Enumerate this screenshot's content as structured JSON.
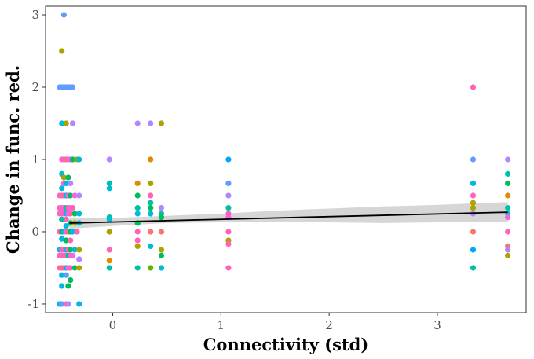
{
  "chart_data": {
    "type": "scatter",
    "title": "",
    "xlabel": "Connectivity (std)",
    "ylabel": "Change in func. red.",
    "xlim": [
      -0.62,
      3.82
    ],
    "ylim": [
      -1.12,
      3.12
    ],
    "x_ticks": [
      0,
      1,
      2,
      3
    ],
    "x_tick_labels": [
      "0",
      "1",
      "2",
      "3"
    ],
    "y_ticks": [
      -1,
      0,
      1,
      2,
      3
    ],
    "y_tick_labels": [
      "-1",
      "0",
      "1",
      "2",
      "3"
    ],
    "grid": false,
    "legend": "none",
    "palette": [
      "#F8766D",
      "#DB8E00",
      "#AEA200",
      "#64B200",
      "#00BD5C",
      "#00C1A7",
      "#00BADE",
      "#00A6FF",
      "#B385FF",
      "#EF67EB",
      "#FF63B6",
      "#F564E3",
      "#619CFF",
      "#00B0F6"
    ],
    "points": [
      [
        -0.45,
        3.0,
        12
      ],
      [
        -0.47,
        2.5,
        2
      ],
      [
        -0.47,
        2.0,
        12
      ],
      [
        -0.45,
        2.0,
        12
      ],
      [
        -0.43,
        2.0,
        12
      ],
      [
        -0.41,
        2.0,
        12
      ],
      [
        -0.39,
        2.0,
        12
      ],
      [
        -0.37,
        2.0,
        12
      ],
      [
        -0.49,
        2.0,
        12
      ],
      [
        -0.47,
        1.5,
        6
      ],
      [
        -0.43,
        1.5,
        2
      ],
      [
        -0.37,
        1.5,
        8
      ],
      [
        -0.47,
        1.0,
        11
      ],
      [
        -0.45,
        1.0,
        10
      ],
      [
        -0.43,
        1.0,
        0
      ],
      [
        -0.41,
        1.0,
        11
      ],
      [
        -0.39,
        1.0,
        11
      ],
      [
        -0.37,
        1.0,
        4
      ],
      [
        -0.33,
        1.0,
        2
      ],
      [
        -0.31,
        1.0,
        6
      ],
      [
        -0.47,
        0.8,
        6
      ],
      [
        -0.45,
        0.75,
        2
      ],
      [
        -0.41,
        0.75,
        4
      ],
      [
        -0.45,
        0.67,
        11
      ],
      [
        -0.43,
        0.67,
        6
      ],
      [
        -0.39,
        0.67,
        8
      ],
      [
        -0.47,
        0.6,
        6
      ],
      [
        -0.49,
        0.5,
        11
      ],
      [
        -0.47,
        0.5,
        0
      ],
      [
        -0.45,
        0.5,
        10
      ],
      [
        -0.43,
        0.5,
        6
      ],
      [
        -0.41,
        0.5,
        11
      ],
      [
        -0.39,
        0.5,
        4
      ],
      [
        -0.35,
        0.5,
        11
      ],
      [
        -0.31,
        0.5,
        8
      ],
      [
        -0.49,
        0.33,
        10
      ],
      [
        -0.47,
        0.33,
        11
      ],
      [
        -0.45,
        0.33,
        10
      ],
      [
        -0.43,
        0.33,
        5
      ],
      [
        -0.41,
        0.33,
        10
      ],
      [
        -0.39,
        0.33,
        11
      ],
      [
        -0.37,
        0.33,
        10
      ],
      [
        -0.49,
        0.25,
        10
      ],
      [
        -0.47,
        0.25,
        11
      ],
      [
        -0.45,
        0.25,
        10
      ],
      [
        -0.43,
        0.25,
        6
      ],
      [
        -0.41,
        0.25,
        11
      ],
      [
        -0.39,
        0.25,
        10
      ],
      [
        -0.35,
        0.25,
        4
      ],
      [
        -0.31,
        0.25,
        6
      ],
      [
        -0.47,
        0.17,
        5
      ],
      [
        -0.43,
        0.17,
        10
      ],
      [
        -0.39,
        0.12,
        4
      ],
      [
        -0.35,
        0.12,
        2
      ],
      [
        -0.31,
        0.12,
        6
      ],
      [
        -0.43,
        0.08,
        6
      ],
      [
        -0.49,
        0.0,
        10
      ],
      [
        -0.47,
        0.0,
        4
      ],
      [
        -0.45,
        0.0,
        6
      ],
      [
        -0.43,
        0.0,
        11
      ],
      [
        -0.41,
        0.0,
        0
      ],
      [
        -0.39,
        0.0,
        4
      ],
      [
        -0.37,
        0.0,
        6
      ],
      [
        -0.33,
        0.0,
        10
      ],
      [
        -0.47,
        -0.1,
        6
      ],
      [
        -0.43,
        -0.12,
        4
      ],
      [
        -0.39,
        -0.12,
        10
      ],
      [
        -0.49,
        -0.25,
        6
      ],
      [
        -0.47,
        -0.25,
        10
      ],
      [
        -0.45,
        -0.25,
        10
      ],
      [
        -0.43,
        -0.25,
        6
      ],
      [
        -0.41,
        -0.25,
        10
      ],
      [
        -0.39,
        -0.25,
        4
      ],
      [
        -0.35,
        -0.25,
        6
      ],
      [
        -0.31,
        -0.25,
        2
      ],
      [
        -0.49,
        -0.33,
        10
      ],
      [
        -0.47,
        -0.33,
        11
      ],
      [
        -0.45,
        -0.33,
        10
      ],
      [
        -0.43,
        -0.33,
        10
      ],
      [
        -0.41,
        -0.33,
        5
      ],
      [
        -0.39,
        -0.33,
        10
      ],
      [
        -0.37,
        -0.33,
        11
      ],
      [
        -0.31,
        -0.38,
        8
      ],
      [
        -0.49,
        -0.5,
        10
      ],
      [
        -0.47,
        -0.5,
        0
      ],
      [
        -0.45,
        -0.5,
        10
      ],
      [
        -0.43,
        -0.5,
        6
      ],
      [
        -0.41,
        -0.5,
        11
      ],
      [
        -0.39,
        -0.5,
        10
      ],
      [
        -0.35,
        -0.5,
        4
      ],
      [
        -0.31,
        -0.5,
        2
      ],
      [
        -0.47,
        -0.6,
        6
      ],
      [
        -0.43,
        -0.6,
        12
      ],
      [
        -0.39,
        -0.67,
        4
      ],
      [
        -0.41,
        -0.75,
        4
      ],
      [
        -0.47,
        -0.75,
        6
      ],
      [
        -0.49,
        -1.0,
        6
      ],
      [
        -0.47,
        -1.0,
        12
      ],
      [
        -0.43,
        -1.0,
        10
      ],
      [
        -0.41,
        -1.0,
        8
      ],
      [
        -0.31,
        -1.0,
        6
      ],
      [
        -0.03,
        1.0,
        8
      ],
      [
        -0.03,
        0.67,
        5
      ],
      [
        -0.03,
        0.6,
        6
      ],
      [
        -0.03,
        0.2,
        5
      ],
      [
        -0.03,
        0.17,
        6
      ],
      [
        -0.03,
        0.0,
        10
      ],
      [
        -0.03,
        0.0,
        2
      ],
      [
        -0.03,
        -0.25,
        10
      ],
      [
        -0.03,
        -0.4,
        1
      ],
      [
        -0.03,
        -0.5,
        5
      ],
      [
        0.23,
        1.5,
        8
      ],
      [
        0.23,
        0.67,
        1
      ],
      [
        0.23,
        0.5,
        4
      ],
      [
        0.23,
        0.33,
        5
      ],
      [
        0.23,
        0.25,
        6
      ],
      [
        0.23,
        0.12,
        4
      ],
      [
        0.23,
        0.0,
        10
      ],
      [
        0.23,
        -0.12,
        10
      ],
      [
        0.23,
        -0.2,
        2
      ],
      [
        0.23,
        -0.5,
        5
      ],
      [
        0.35,
        1.5,
        8
      ],
      [
        0.35,
        1.0,
        1
      ],
      [
        0.35,
        0.67,
        2
      ],
      [
        0.35,
        0.5,
        10
      ],
      [
        0.35,
        0.4,
        5
      ],
      [
        0.35,
        0.33,
        4
      ],
      [
        0.35,
        0.25,
        6
      ],
      [
        0.35,
        0.0,
        10
      ],
      [
        0.35,
        0.0,
        0
      ],
      [
        0.35,
        -0.2,
        6
      ],
      [
        0.35,
        -0.5,
        3
      ],
      [
        0.45,
        1.5,
        2
      ],
      [
        0.45,
        0.33,
        8
      ],
      [
        0.45,
        0.25,
        5
      ],
      [
        0.45,
        0.2,
        4
      ],
      [
        0.45,
        0.0,
        0
      ],
      [
        0.45,
        -0.25,
        2
      ],
      [
        0.45,
        -0.33,
        4
      ],
      [
        0.45,
        -0.5,
        6
      ],
      [
        1.07,
        1.0,
        7
      ],
      [
        1.07,
        0.67,
        12
      ],
      [
        1.07,
        0.5,
        8
      ],
      [
        1.07,
        0.33,
        5
      ],
      [
        1.07,
        0.25,
        10
      ],
      [
        1.07,
        0.2,
        11
      ],
      [
        1.07,
        0.0,
        10
      ],
      [
        1.07,
        -0.12,
        2
      ],
      [
        1.07,
        -0.17,
        10
      ],
      [
        1.07,
        -0.5,
        10
      ],
      [
        3.33,
        2.0,
        10
      ],
      [
        3.33,
        1.0,
        12
      ],
      [
        3.33,
        0.67,
        6
      ],
      [
        3.33,
        0.5,
        10
      ],
      [
        3.33,
        0.4,
        2
      ],
      [
        3.33,
        0.33,
        2
      ],
      [
        3.33,
        0.25,
        8
      ],
      [
        3.33,
        0.0,
        0
      ],
      [
        3.33,
        -0.25,
        7
      ],
      [
        3.33,
        -0.5,
        5
      ],
      [
        3.65,
        1.0,
        8
      ],
      [
        3.65,
        0.8,
        5
      ],
      [
        3.65,
        0.67,
        4
      ],
      [
        3.65,
        0.5,
        1
      ],
      [
        3.65,
        0.33,
        5
      ],
      [
        3.65,
        0.25,
        6
      ],
      [
        3.65,
        0.2,
        11
      ],
      [
        3.65,
        0.0,
        10
      ],
      [
        3.65,
        -0.2,
        0
      ],
      [
        3.65,
        -0.25,
        8
      ],
      [
        3.65,
        -0.33,
        2
      ]
    ],
    "trend_line": {
      "x": [
        -0.4,
        3.65
      ],
      "y": [
        0.12,
        0.27
      ]
    },
    "confidence_band": {
      "x": [
        -0.4,
        0.0,
        0.5,
        1.0,
        1.5,
        2.0,
        2.5,
        3.0,
        3.3,
        3.65
      ],
      "upper": [
        0.2,
        0.19,
        0.22,
        0.25,
        0.29,
        0.32,
        0.35,
        0.37,
        0.39,
        0.41
      ],
      "lower": [
        0.04,
        0.08,
        0.12,
        0.13,
        0.13,
        0.13,
        0.12,
        0.13,
        0.13,
        0.13
      ]
    },
    "colors": {
      "trend": "#000000",
      "band": "#cfcfcf",
      "axis": "#333333",
      "tick_text": "#4d4d4d"
    }
  }
}
